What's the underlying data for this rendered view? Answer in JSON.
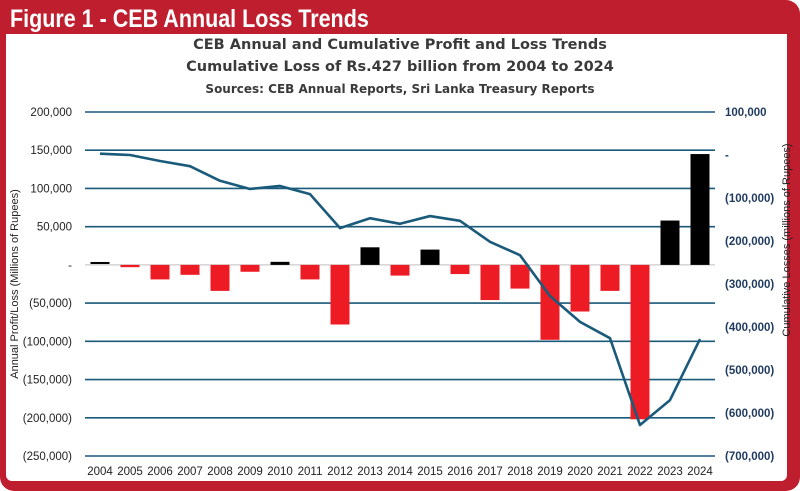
{
  "header": {
    "figure_label": "Figure 1 - CEB Annual Loss Trends"
  },
  "colors": {
    "frame": "#bf1e2e",
    "loss_bar": "#ed1c24",
    "profit_bar": "#000000",
    "line": "#1a5a7a",
    "grid": "#1a5a7a",
    "right_axis_text": "#1f3a5f"
  },
  "chart_data": {
    "type": "bar+line",
    "title": "CEB Annual and Cumulative Profit and Loss Trends",
    "subtitle": "Cumulative Loss of Rs.427 billion from 2004 to 2024",
    "source": "Sources: CEB Annual Reports, Sri Lanka Treasury Reports",
    "categories": [
      "2004",
      "2005",
      "2006",
      "2007",
      "2008",
      "2009",
      "2010",
      "2011",
      "2012",
      "2013",
      "2014",
      "2015",
      "2016",
      "2017",
      "2018",
      "2019",
      "2020",
      "2021",
      "2022",
      "2023",
      "2024"
    ],
    "series": [
      {
        "name": "Annual Profit/Loss",
        "type": "bar",
        "axis": "left",
        "values": [
          2500,
          -3000,
          -19000,
          -13000,
          -34000,
          -9000,
          4000,
          -19000,
          -78000,
          23000,
          -14000,
          20000,
          -12000,
          -46000,
          -31000,
          -98000,
          -61000,
          -34000,
          -202000,
          58000,
          145000
        ]
      },
      {
        "name": "Cumulative Losses",
        "type": "line",
        "axis": "right",
        "values": [
          3000,
          0,
          -14000,
          -26000,
          -60000,
          -79000,
          -72000,
          -91000,
          -170000,
          -147000,
          -160000,
          -142000,
          -153000,
          -202000,
          -233000,
          -328000,
          -388000,
          -426000,
          -628000,
          -570000,
          -428000
        ]
      }
    ],
    "ylabel": "Annual Profit/Loss (Millions of Rupees)",
    "y2label": "Cumulative Losses (millions of Rupees)",
    "ylim": [
      -250000,
      200000
    ],
    "y2lim": [
      -700000,
      100000
    ],
    "yticks": [
      "200,000",
      "150,000",
      "100,000",
      "50,000",
      "-",
      "(50,000)",
      "(100,000)",
      "(150,000)",
      "(200,000)",
      "(250,000)"
    ],
    "ytick_values": [
      200000,
      150000,
      100000,
      50000,
      0,
      -50000,
      -100000,
      -150000,
      -200000,
      -250000
    ],
    "y2ticks": [
      "100,000",
      "-",
      "(100,000)",
      "(200,000)",
      "(300,000)",
      "(400,000)",
      "(500,000)",
      "(600,000)",
      "(700,000)"
    ],
    "y2tick_values": [
      100000,
      0,
      -100000,
      -200000,
      -300000,
      -400000,
      -500000,
      -600000,
      -700000
    ],
    "grid": true,
    "legend": "none"
  }
}
